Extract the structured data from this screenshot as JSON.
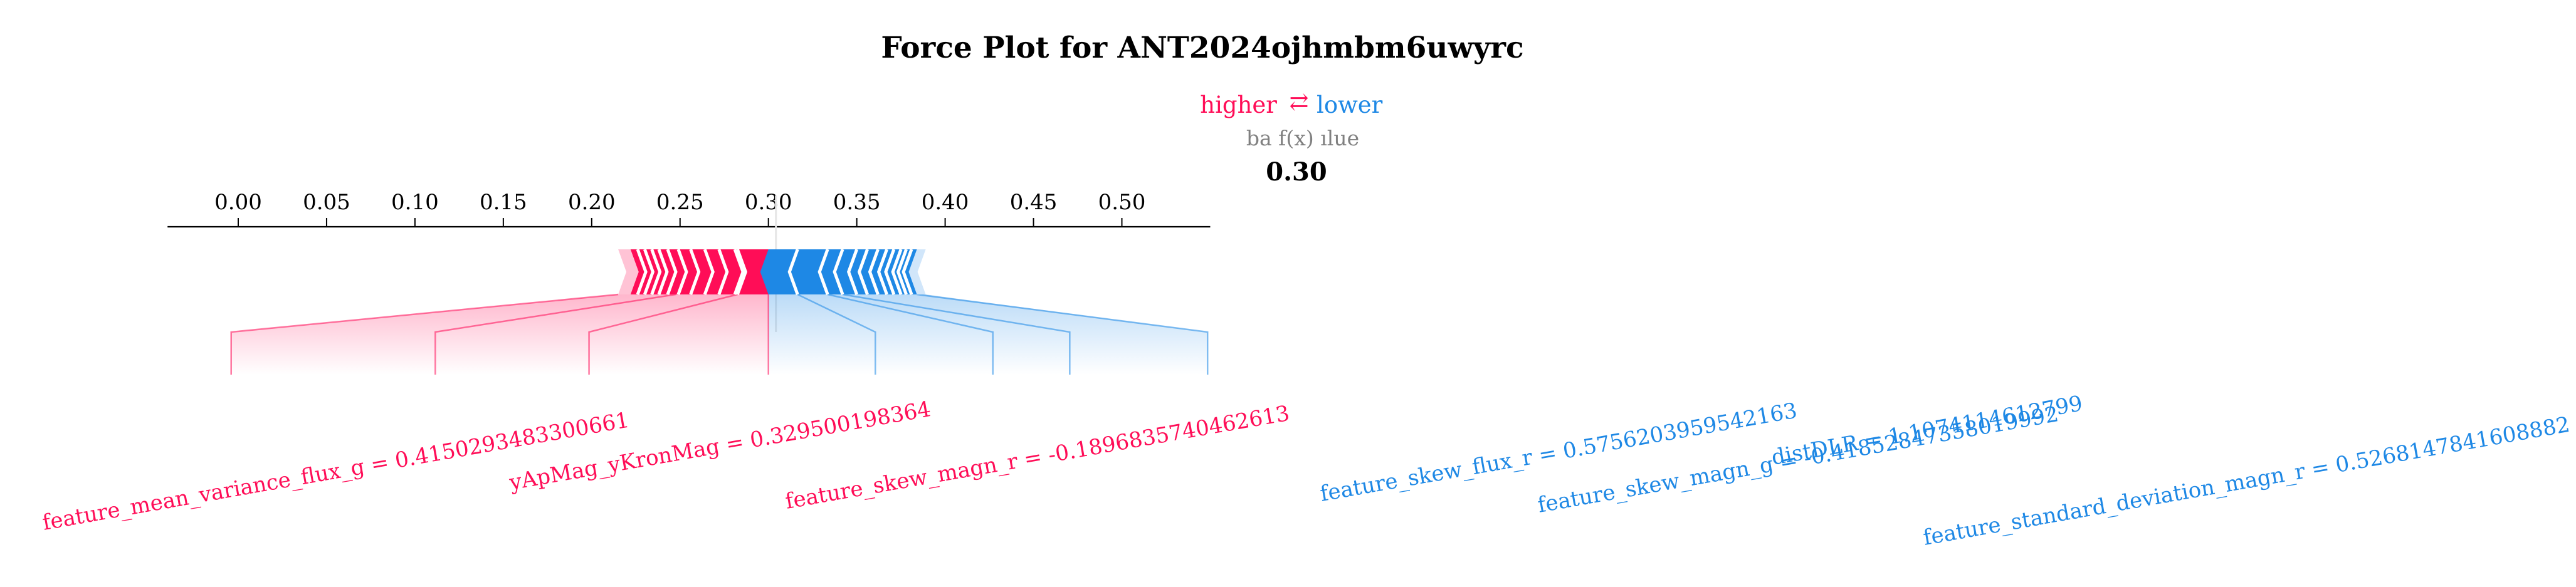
{
  "chart_data": {
    "type": "force_plot",
    "title": "Force Plot for ANT2024ojhmbm6uwyrc",
    "legend": {
      "higher_label": "higher",
      "arrow_symbol": "⇄",
      "lower_label": "lower",
      "base_value_label": "ba f(x) ılue",
      "position": "top-center"
    },
    "output_value": 0.3,
    "output_value_label": "0.30",
    "axis": {
      "range": [
        0.0,
        0.55
      ],
      "ticks": [
        0.0,
        0.05,
        0.1,
        0.15,
        0.2,
        0.25,
        0.3,
        0.35,
        0.4,
        0.45,
        0.5
      ],
      "tick_labels": [
        "0.00",
        "0.05",
        "0.10",
        "0.15",
        "0.20",
        "0.25",
        "0.30",
        "0.35",
        "0.40",
        "0.45",
        "0.50"
      ]
    },
    "higher": {
      "range": [
        0.215,
        0.3
      ],
      "boundaries": [
        0.222,
        0.226,
        0.23,
        0.234,
        0.238,
        0.243,
        0.249,
        0.256,
        0.264,
        0.272,
        0.281,
        0.2825,
        0.3
      ]
    },
    "lower": {
      "range": [
        0.3,
        0.389
      ],
      "boundaries": [
        0.3,
        0.3165,
        0.3335,
        0.342,
        0.35,
        0.356,
        0.362,
        0.367,
        0.371,
        0.375,
        0.378,
        0.381,
        0.384
      ]
    },
    "higher_features": [
      {
        "label": "feature_mean_variance_flux_g = 0.4150293483300661",
        "bar_x": 0.215,
        "line_x": -0.004
      },
      {
        "label": "yApMag_yKronMag = 0.329500198364",
        "bar_x": 0.2475,
        "line_x": 0.1115
      },
      {
        "label": "feature_skew_magn_r = -0.1896835740462613",
        "bar_x": 0.2825,
        "line_x": 0.1985
      }
    ],
    "lower_features": [
      {
        "label": "feature_skew_flux_r = 0.5756203959542163",
        "bar_x": 0.3165,
        "line_x": 0.3605
      },
      {
        "label": "feature_skew_magn_g = -0.41852847358019992",
        "bar_x": 0.3335,
        "line_x": 0.427
      },
      {
        "label": "distDLR = 1.1074114612799",
        "bar_x": 0.342,
        "line_x": 0.4705
      },
      {
        "label": "feature_standard_deviation_magn_r = 0.5268147841608882",
        "bar_x": 0.384,
        "line_x": 0.5485
      }
    ],
    "colors": {
      "higher": "#ff0d57",
      "higher_light": "#ffc3d5",
      "lower": "#1e88e5",
      "lower_light": "#d1e6fa",
      "title": "#000000",
      "muted": "#808080"
    }
  }
}
